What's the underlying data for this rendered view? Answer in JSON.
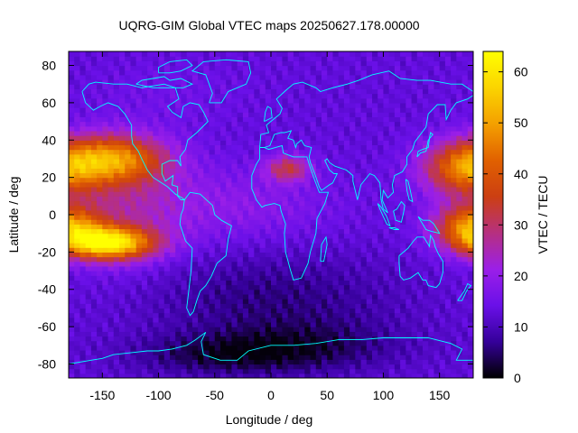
{
  "chart_data": {
    "type": "heatmap",
    "title": "UQRG-GIM Global VTEC maps 20250627.178.00000",
    "xlabel": "Longitude / deg",
    "ylabel": "Latitude / deg",
    "colorbar_label": "VTEC / TECU",
    "xlim": [
      -180,
      180
    ],
    "ylim": [
      -87.5,
      87.5
    ],
    "x_ticks": [
      -150,
      -100,
      -50,
      0,
      50,
      100,
      150
    ],
    "y_ticks": [
      -80,
      -60,
      -40,
      -20,
      0,
      20,
      40,
      60,
      80
    ],
    "colorbar_ticks": [
      0,
      10,
      20,
      30,
      40,
      50,
      60
    ],
    "color_range": [
      0,
      64
    ],
    "grid_resolution": {
      "lon_step": 5,
      "lat_step": 2.5
    },
    "colormap_stops": [
      "#000000",
      "#35009a",
      "#6a10e8",
      "#9b1fe8",
      "#b63080",
      "#cc3f12",
      "#e16100",
      "#f4a000",
      "#fbd400",
      "#ffff00"
    ],
    "coastline_color": "#00ffff",
    "features": [
      {
        "region": "Pacific equatorial anomaly south crest",
        "lon": -140,
        "lat": -15,
        "vtec": 60
      },
      {
        "region": "Pacific equatorial anomaly north crest",
        "lon": -140,
        "lat": 30,
        "vtec": 45
      },
      {
        "region": "West Pacific south crest",
        "lon": 175,
        "lat": -5,
        "vtec": 46
      },
      {
        "region": "West Pacific north crest",
        "lon": 170,
        "lat": 25,
        "vtec": 42
      },
      {
        "region": "North Africa",
        "lon": 15,
        "lat": 25,
        "vtec": 33
      },
      {
        "region": "Eastern Atlantic / Africa band",
        "lon": 0,
        "lat": 5,
        "vtec": 20
      },
      {
        "region": "South Atlantic / Southern Ocean",
        "lon": 10,
        "lat": -50,
        "vtec": 7
      },
      {
        "region": "Antarctica",
        "lon": -40,
        "lat": -75,
        "vtec": 3
      },
      {
        "region": "Arctic / North America high latitudes",
        "lon": -90,
        "lat": 65,
        "vtec": 15
      }
    ]
  }
}
